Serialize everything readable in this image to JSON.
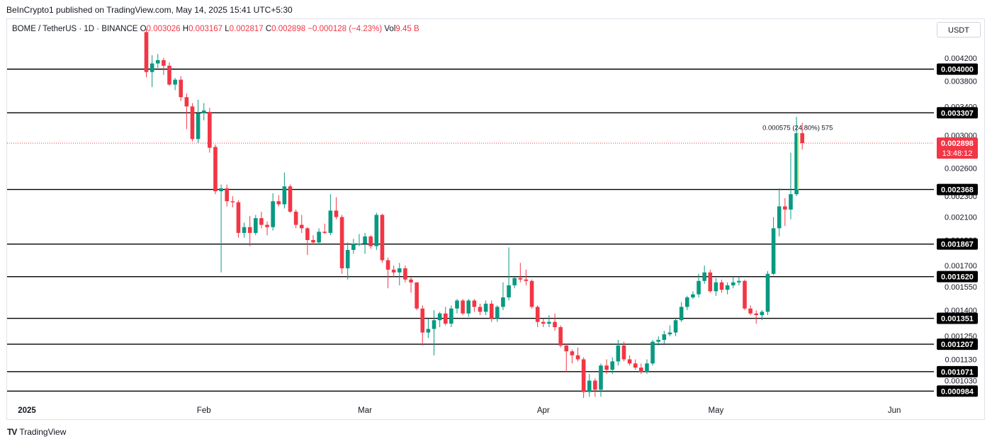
{
  "header": {
    "published": "BeInCrypto1 published on TradingView.com, May 14, 2025 15:41 UTC+5:30"
  },
  "legend": {
    "symbol": "BOME / TetherUS · 1D · BINANCE",
    "o_label": "O",
    "o_value": "0.003026",
    "h_label": "H",
    "h_value": "0.003167",
    "l_label": "L",
    "l_value": "0.002817",
    "c_label": "C",
    "c_value": "0.002898",
    "change": "−0.000128 (−4.23%)",
    "vol_label": "Vol",
    "vol_value": "9.45 B"
  },
  "currency_button": "USDT",
  "footer": {
    "brand": "TradingView"
  },
  "colors": {
    "up": "#089981",
    "down": "#f23645",
    "level_line": "#000000",
    "current_price": "#f23645"
  },
  "chart_data": {
    "type": "candlestick",
    "symbol": "BOME/USDT",
    "interval": "1D",
    "xlabel": "",
    "ylabel": "",
    "x_ticks": [
      "2025",
      "Feb",
      "Mar",
      "Apr",
      "May",
      "Jun"
    ],
    "y_ticks": [
      "0.004200",
      "0.003800",
      "0.003400",
      "0.003000",
      "0.002600",
      "0.002300",
      "0.002100",
      "0.001900",
      "0.001700",
      "0.001550",
      "0.001400",
      "0.001250",
      "0.001130",
      "0.001030"
    ],
    "ylim": [
      0.000955,
      0.00452
    ],
    "y_scale": "log",
    "grid": false,
    "horizontal_levels": [
      "0.004000",
      "0.003307",
      "0.002368",
      "0.001867",
      "0.001620",
      "0.001351",
      "0.001207",
      "0.001071",
      "0.000984"
    ],
    "current_price": "0.002898",
    "countdown": "13:48:12",
    "measure_annotation": "0.000575 (24.80%) 575",
    "candles": [
      {
        "d": "2025-01-22",
        "o": 0.0047,
        "h": 0.00476,
        "l": 0.00386,
        "c": 0.00395
      },
      {
        "d": "2025-01-23",
        "o": 0.00395,
        "h": 0.00425,
        "l": 0.0037,
        "c": 0.0041
      },
      {
        "d": "2025-01-24",
        "o": 0.0041,
        "h": 0.00427,
        "l": 0.00402,
        "c": 0.00416
      },
      {
        "d": "2025-01-25",
        "o": 0.00416,
        "h": 0.0042,
        "l": 0.0039,
        "c": 0.00406
      },
      {
        "d": "2025-01-26",
        "o": 0.00406,
        "h": 0.00412,
        "l": 0.00372,
        "c": 0.00374
      },
      {
        "d": "2025-01-27",
        "o": 0.00374,
        "h": 0.00385,
        "l": 0.00365,
        "c": 0.00382
      },
      {
        "d": "2025-01-28",
        "o": 0.00382,
        "h": 0.00388,
        "l": 0.00348,
        "c": 0.00354
      },
      {
        "d": "2025-01-29",
        "o": 0.00354,
        "h": 0.0036,
        "l": 0.00308,
        "c": 0.0034
      },
      {
        "d": "2025-01-30",
        "o": 0.0034,
        "h": 0.00345,
        "l": 0.00292,
        "c": 0.00295
      },
      {
        "d": "2025-01-31",
        "o": 0.00295,
        "h": 0.0035,
        "l": 0.0029,
        "c": 0.0033
      },
      {
        "d": "2025-02-01",
        "o": 0.0033,
        "h": 0.00345,
        "l": 0.0032,
        "c": 0.00334
      },
      {
        "d": "2025-02-02",
        "o": 0.00332,
        "h": 0.00338,
        "l": 0.00278,
        "c": 0.00284
      },
      {
        "d": "2025-02-03",
        "o": 0.00285,
        "h": 0.00288,
        "l": 0.00232,
        "c": 0.00235
      },
      {
        "d": "2025-02-04",
        "o": 0.00235,
        "h": 0.00242,
        "l": 0.00165,
        "c": 0.00238
      },
      {
        "d": "2025-02-05",
        "o": 0.00238,
        "h": 0.00242,
        "l": 0.0022,
        "c": 0.00225
      },
      {
        "d": "2025-02-06",
        "o": 0.00225,
        "h": 0.0023,
        "l": 0.00219,
        "c": 0.00224
      },
      {
        "d": "2025-02-07",
        "o": 0.00224,
        "h": 0.00226,
        "l": 0.00192,
        "c": 0.00196
      },
      {
        "d": "2025-02-08",
        "o": 0.00196,
        "h": 0.00205,
        "l": 0.00192,
        "c": 0.00201
      },
      {
        "d": "2025-02-09",
        "o": 0.00201,
        "h": 0.00211,
        "l": 0.00185,
        "c": 0.00196
      },
      {
        "d": "2025-02-10",
        "o": 0.00196,
        "h": 0.00212,
        "l": 0.00194,
        "c": 0.00209
      },
      {
        "d": "2025-02-11",
        "o": 0.00209,
        "h": 0.00215,
        "l": 0.002,
        "c": 0.00203
      },
      {
        "d": "2025-02-12",
        "o": 0.00203,
        "h": 0.00206,
        "l": 0.00194,
        "c": 0.00201
      },
      {
        "d": "2025-02-13",
        "o": 0.00201,
        "h": 0.00233,
        "l": 0.00198,
        "c": 0.00225
      },
      {
        "d": "2025-02-14",
        "o": 0.00225,
        "h": 0.00231,
        "l": 0.0022,
        "c": 0.00222
      },
      {
        "d": "2025-02-15",
        "o": 0.00222,
        "h": 0.00255,
        "l": 0.00218,
        "c": 0.0024
      },
      {
        "d": "2025-02-16",
        "o": 0.0024,
        "h": 0.00242,
        "l": 0.00214,
        "c": 0.00215
      },
      {
        "d": "2025-02-17",
        "o": 0.00215,
        "h": 0.00217,
        "l": 0.002,
        "c": 0.00203
      },
      {
        "d": "2025-02-18",
        "o": 0.00203,
        "h": 0.00212,
        "l": 0.00196,
        "c": 0.002
      },
      {
        "d": "2025-02-19",
        "o": 0.002,
        "h": 0.00201,
        "l": 0.00178,
        "c": 0.0019
      },
      {
        "d": "2025-02-20",
        "o": 0.0019,
        "h": 0.00194,
        "l": 0.00186,
        "c": 0.00188
      },
      {
        "d": "2025-02-21",
        "o": 0.00188,
        "h": 0.002,
        "l": 0.00186,
        "c": 0.00197
      },
      {
        "d": "2025-02-22",
        "o": 0.00197,
        "h": 0.00204,
        "l": 0.00195,
        "c": 0.00196
      },
      {
        "d": "2025-02-23",
        "o": 0.00196,
        "h": 0.00232,
        "l": 0.00194,
        "c": 0.00216
      },
      {
        "d": "2025-02-24",
        "o": 0.00216,
        "h": 0.00229,
        "l": 0.00208,
        "c": 0.0021
      },
      {
        "d": "2025-02-25",
        "o": 0.0021,
        "h": 0.00212,
        "l": 0.00164,
        "c": 0.00168
      },
      {
        "d": "2025-02-26",
        "o": 0.00168,
        "h": 0.00188,
        "l": 0.0016,
        "c": 0.00182
      },
      {
        "d": "2025-02-27",
        "o": 0.00182,
        "h": 0.00191,
        "l": 0.00179,
        "c": 0.00187
      },
      {
        "d": "2025-02-28",
        "o": 0.00187,
        "h": 0.00195,
        "l": 0.00185,
        "c": 0.00187
      },
      {
        "d": "2025-03-01",
        "o": 0.00187,
        "h": 0.00196,
        "l": 0.00179,
        "c": 0.00193
      },
      {
        "d": "2025-03-02",
        "o": 0.00193,
        "h": 0.00194,
        "l": 0.00183,
        "c": 0.00185
      },
      {
        "d": "2025-03-03",
        "o": 0.00185,
        "h": 0.00214,
        "l": 0.00182,
        "c": 0.00212
      },
      {
        "d": "2025-03-04",
        "o": 0.00212,
        "h": 0.00213,
        "l": 0.00172,
        "c": 0.00174
      },
      {
        "d": "2025-03-05",
        "o": 0.00174,
        "h": 0.00176,
        "l": 0.00154,
        "c": 0.00167
      },
      {
        "d": "2025-03-06",
        "o": 0.00167,
        "h": 0.0017,
        "l": 0.00162,
        "c": 0.00165
      },
      {
        "d": "2025-03-07",
        "o": 0.00165,
        "h": 0.00172,
        "l": 0.00156,
        "c": 0.00168
      },
      {
        "d": "2025-03-08",
        "o": 0.00168,
        "h": 0.0017,
        "l": 0.00158,
        "c": 0.0016
      },
      {
        "d": "2025-03-09",
        "o": 0.0016,
        "h": 0.00162,
        "l": 0.00151,
        "c": 0.00158
      },
      {
        "d": "2025-03-10",
        "o": 0.00158,
        "h": 0.00158,
        "l": 0.0014,
        "c": 0.00141
      },
      {
        "d": "2025-03-11",
        "o": 0.00141,
        "h": 0.00143,
        "l": 0.0012,
        "c": 0.00127
      },
      {
        "d": "2025-03-12",
        "o": 0.00127,
        "h": 0.00135,
        "l": 0.00124,
        "c": 0.00129
      },
      {
        "d": "2025-03-13",
        "o": 0.00129,
        "h": 0.0014,
        "l": 0.00115,
        "c": 0.00134
      },
      {
        "d": "2025-03-14",
        "o": 0.00134,
        "h": 0.00139,
        "l": 0.0013,
        "c": 0.00138
      },
      {
        "d": "2025-03-15",
        "o": 0.00138,
        "h": 0.00142,
        "l": 0.00131,
        "c": 0.00132
      },
      {
        "d": "2025-03-16",
        "o": 0.00132,
        "h": 0.00143,
        "l": 0.0013,
        "c": 0.00141
      },
      {
        "d": "2025-03-17",
        "o": 0.00141,
        "h": 0.00147,
        "l": 0.00138,
        "c": 0.00146
      },
      {
        "d": "2025-03-18",
        "o": 0.00146,
        "h": 0.00147,
        "l": 0.00137,
        "c": 0.00138
      },
      {
        "d": "2025-03-19",
        "o": 0.00138,
        "h": 0.00147,
        "l": 0.00136,
        "c": 0.00146
      },
      {
        "d": "2025-03-20",
        "o": 0.00146,
        "h": 0.00147,
        "l": 0.00139,
        "c": 0.00142
      },
      {
        "d": "2025-03-21",
        "o": 0.00142,
        "h": 0.00144,
        "l": 0.00137,
        "c": 0.00139
      },
      {
        "d": "2025-03-22",
        "o": 0.00139,
        "h": 0.00146,
        "l": 0.00137,
        "c": 0.00144
      },
      {
        "d": "2025-03-23",
        "o": 0.00144,
        "h": 0.00146,
        "l": 0.00133,
        "c": 0.00135
      },
      {
        "d": "2025-03-24",
        "o": 0.00135,
        "h": 0.00143,
        "l": 0.00133,
        "c": 0.00142
      },
      {
        "d": "2025-03-25",
        "o": 0.00142,
        "h": 0.00158,
        "l": 0.0014,
        "c": 0.00148
      },
      {
        "d": "2025-03-26",
        "o": 0.00148,
        "h": 0.00184,
        "l": 0.00146,
        "c": 0.00156
      },
      {
        "d": "2025-03-27",
        "o": 0.00156,
        "h": 0.00162,
        "l": 0.00154,
        "c": 0.00161
      },
      {
        "d": "2025-03-28",
        "o": 0.00161,
        "h": 0.00172,
        "l": 0.00158,
        "c": 0.0016
      },
      {
        "d": "2025-03-29",
        "o": 0.0016,
        "h": 0.00167,
        "l": 0.00156,
        "c": 0.00159
      },
      {
        "d": "2025-03-30",
        "o": 0.00159,
        "h": 0.0016,
        "l": 0.00141,
        "c": 0.00142
      },
      {
        "d": "2025-03-31",
        "o": 0.00142,
        "h": 0.00143,
        "l": 0.0013,
        "c": 0.00133
      },
      {
        "d": "2025-04-01",
        "o": 0.00133,
        "h": 0.00135,
        "l": 0.0013,
        "c": 0.00132
      },
      {
        "d": "2025-04-02",
        "o": 0.00132,
        "h": 0.00137,
        "l": 0.0013,
        "c": 0.00133
      },
      {
        "d": "2025-04-03",
        "o": 0.00133,
        "h": 0.00138,
        "l": 0.00128,
        "c": 0.0013
      },
      {
        "d": "2025-04-04",
        "o": 0.0013,
        "h": 0.00131,
        "l": 0.00119,
        "c": 0.0012
      },
      {
        "d": "2025-04-05",
        "o": 0.0012,
        "h": 0.00121,
        "l": 0.00107,
        "c": 0.00117
      },
      {
        "d": "2025-04-06",
        "o": 0.00117,
        "h": 0.00118,
        "l": 0.00111,
        "c": 0.00115
      },
      {
        "d": "2025-04-07",
        "o": 0.00115,
        "h": 0.00119,
        "l": 0.00112,
        "c": 0.00113
      },
      {
        "d": "2025-04-08",
        "o": 0.00113,
        "h": 0.00114,
        "l": 0.000955,
        "c": 0.00098
      },
      {
        "d": "2025-04-09",
        "o": 0.00098,
        "h": 0.00106,
        "l": 0.00096,
        "c": 0.00103
      },
      {
        "d": "2025-04-10",
        "o": 0.00103,
        "h": 0.00104,
        "l": 0.00096,
        "c": 0.00099
      },
      {
        "d": "2025-04-11",
        "o": 0.00099,
        "h": 0.00111,
        "l": 0.00096,
        "c": 0.0011
      },
      {
        "d": "2025-04-12",
        "o": 0.0011,
        "h": 0.00113,
        "l": 0.00106,
        "c": 0.00108
      },
      {
        "d": "2025-04-13",
        "o": 0.00108,
        "h": 0.00114,
        "l": 0.00106,
        "c": 0.00112
      },
      {
        "d": "2025-04-14",
        "o": 0.00112,
        "h": 0.00123,
        "l": 0.0011,
        "c": 0.0012
      },
      {
        "d": "2025-04-15",
        "o": 0.0012,
        "h": 0.00122,
        "l": 0.00112,
        "c": 0.00113
      },
      {
        "d": "2025-04-16",
        "o": 0.00113,
        "h": 0.00115,
        "l": 0.0011,
        "c": 0.00111
      },
      {
        "d": "2025-04-17",
        "o": 0.00111,
        "h": 0.00113,
        "l": 0.00108,
        "c": 0.00109
      },
      {
        "d": "2025-04-18",
        "o": 0.00109,
        "h": 0.00111,
        "l": 0.00106,
        "c": 0.00107
      },
      {
        "d": "2025-04-19",
        "o": 0.00107,
        "h": 0.00113,
        "l": 0.00106,
        "c": 0.00111
      },
      {
        "d": "2025-04-20",
        "o": 0.00111,
        "h": 0.00123,
        "l": 0.0011,
        "c": 0.00122
      },
      {
        "d": "2025-04-21",
        "o": 0.00122,
        "h": 0.00125,
        "l": 0.0012,
        "c": 0.00123
      },
      {
        "d": "2025-04-22",
        "o": 0.00123,
        "h": 0.00128,
        "l": 0.00121,
        "c": 0.00126
      },
      {
        "d": "2025-04-23",
        "o": 0.00126,
        "h": 0.00131,
        "l": 0.00125,
        "c": 0.00127
      },
      {
        "d": "2025-04-24",
        "o": 0.00127,
        "h": 0.00135,
        "l": 0.00125,
        "c": 0.00134
      },
      {
        "d": "2025-04-25",
        "o": 0.00134,
        "h": 0.00145,
        "l": 0.00133,
        "c": 0.00142
      },
      {
        "d": "2025-04-26",
        "o": 0.00142,
        "h": 0.00149,
        "l": 0.0014,
        "c": 0.00148
      },
      {
        "d": "2025-04-27",
        "o": 0.00148,
        "h": 0.00152,
        "l": 0.00147,
        "c": 0.0015
      },
      {
        "d": "2025-04-28",
        "o": 0.0015,
        "h": 0.00164,
        "l": 0.00148,
        "c": 0.00159
      },
      {
        "d": "2025-04-29",
        "o": 0.00159,
        "h": 0.0017,
        "l": 0.00157,
        "c": 0.00165
      },
      {
        "d": "2025-04-30",
        "o": 0.00165,
        "h": 0.00167,
        "l": 0.00151,
        "c": 0.00152
      },
      {
        "d": "2025-05-01",
        "o": 0.00152,
        "h": 0.00161,
        "l": 0.00149,
        "c": 0.00158
      },
      {
        "d": "2025-05-02",
        "o": 0.00158,
        "h": 0.0016,
        "l": 0.00151,
        "c": 0.00153
      },
      {
        "d": "2025-05-03",
        "o": 0.00153,
        "h": 0.00158,
        "l": 0.0015,
        "c": 0.00156
      },
      {
        "d": "2025-05-04",
        "o": 0.00156,
        "h": 0.00162,
        "l": 0.00154,
        "c": 0.00158
      },
      {
        "d": "2025-05-05",
        "o": 0.00158,
        "h": 0.00162,
        "l": 0.00156,
        "c": 0.00159
      },
      {
        "d": "2025-05-06",
        "o": 0.00159,
        "h": 0.0016,
        "l": 0.0014,
        "c": 0.00141
      },
      {
        "d": "2025-05-07",
        "o": 0.00141,
        "h": 0.00143,
        "l": 0.00137,
        "c": 0.00138
      },
      {
        "d": "2025-05-08",
        "o": 0.00138,
        "h": 0.0014,
        "l": 0.00132,
        "c": 0.00137
      },
      {
        "d": "2025-05-09",
        "o": 0.00137,
        "h": 0.0014,
        "l": 0.00134,
        "c": 0.00139
      },
      {
        "d": "2025-05-10",
        "o": 0.00139,
        "h": 0.00166,
        "l": 0.00137,
        "c": 0.00164
      },
      {
        "d": "2025-05-11",
        "o": 0.00164,
        "h": 0.0021,
        "l": 0.00163,
        "c": 0.002
      },
      {
        "d": "2025-05-12",
        "o": 0.002,
        "h": 0.00238,
        "l": 0.00193,
        "c": 0.0022
      },
      {
        "d": "2025-05-13",
        "o": 0.0022,
        "h": 0.00228,
        "l": 0.00202,
        "c": 0.00217
      },
      {
        "d": "2025-05-14",
        "o": 0.00217,
        "h": 0.00278,
        "l": 0.00208,
        "c": 0.00232
      },
      {
        "d": "2025-05-15",
        "o": 0.00232,
        "h": 0.00325,
        "l": 0.0023,
        "c": 0.003026
      },
      {
        "d": "2025-05-16",
        "o": 0.003026,
        "h": 0.003167,
        "l": 0.002817,
        "c": 0.002898
      }
    ]
  }
}
